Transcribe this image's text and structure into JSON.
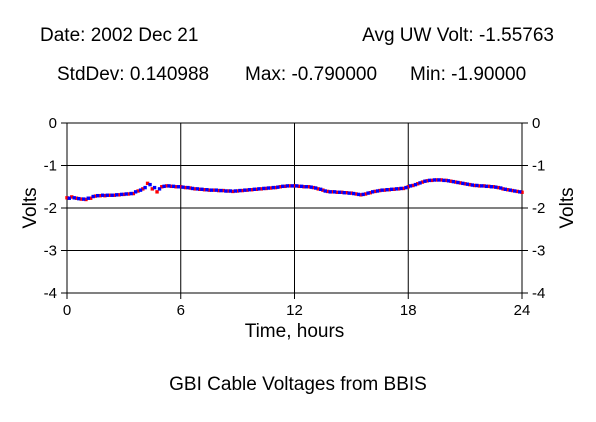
{
  "header": {
    "date": "Date: 2002 Dec 21",
    "avg": "Avg UW Volt: -1.55763",
    "stddev": "StdDev: 0.140988",
    "max": "Max: -0.790000",
    "min": "Min: -1.90000"
  },
  "caption": "GBI Cable Voltages from BBIS",
  "colors": {
    "series_a": "#ff0000",
    "series_b": "#0000ff",
    "grid": "#000000"
  },
  "chart_data": {
    "type": "scatter",
    "xlabel": "Time, hours",
    "ylabel": "Volts",
    "ylabel_right": "Volts",
    "xlim": [
      0,
      24
    ],
    "ylim": [
      -4,
      0
    ],
    "x_ticks": [
      0,
      6,
      12,
      18,
      24
    ],
    "x_tick_labels": [
      "0",
      "6",
      "12",
      "18",
      "24"
    ],
    "y_ticks": [
      0,
      -1,
      -2,
      -3,
      -4
    ],
    "y_tick_labels": [
      "0",
      "-1",
      "-2",
      "-3",
      "-4"
    ],
    "grid": true,
    "series": [
      {
        "color": "#ff0000",
        "points": [
          [
            0.0,
            -1.76
          ],
          [
            0.25,
            -1.74
          ],
          [
            0.5,
            -1.77
          ],
          [
            0.75,
            -1.79
          ],
          [
            1.0,
            -1.8
          ],
          [
            1.25,
            -1.77
          ],
          [
            1.5,
            -1.72
          ],
          [
            1.75,
            -1.71
          ],
          [
            2.0,
            -1.71
          ],
          [
            2.25,
            -1.7
          ],
          [
            2.5,
            -1.7
          ],
          [
            2.75,
            -1.69
          ],
          [
            3.0,
            -1.68
          ],
          [
            3.25,
            -1.67
          ],
          [
            3.5,
            -1.66
          ],
          [
            3.75,
            -1.6
          ],
          [
            4.0,
            -1.55
          ],
          [
            4.25,
            -1.42
          ],
          [
            4.5,
            -1.55
          ],
          [
            4.75,
            -1.62
          ],
          [
            5.0,
            -1.5
          ],
          [
            5.25,
            -1.48
          ],
          [
            5.5,
            -1.49
          ],
          [
            5.75,
            -1.5
          ],
          [
            6.0,
            -1.5
          ],
          [
            6.25,
            -1.52
          ],
          [
            6.5,
            -1.53
          ],
          [
            6.75,
            -1.55
          ],
          [
            7.0,
            -1.56
          ],
          [
            7.25,
            -1.57
          ],
          [
            7.5,
            -1.58
          ],
          [
            7.75,
            -1.58
          ],
          [
            8.0,
            -1.59
          ],
          [
            8.25,
            -1.59
          ],
          [
            8.5,
            -1.6
          ],
          [
            8.75,
            -1.61
          ],
          [
            9.0,
            -1.6
          ],
          [
            9.25,
            -1.59
          ],
          [
            9.5,
            -1.58
          ],
          [
            9.75,
            -1.57
          ],
          [
            10.0,
            -1.56
          ],
          [
            10.25,
            -1.55
          ],
          [
            10.5,
            -1.54
          ],
          [
            10.75,
            -1.53
          ],
          [
            11.0,
            -1.52
          ],
          [
            11.25,
            -1.5
          ],
          [
            11.5,
            -1.49
          ],
          [
            11.75,
            -1.48
          ],
          [
            12.0,
            -1.48
          ],
          [
            12.25,
            -1.49
          ],
          [
            12.5,
            -1.5
          ],
          [
            12.75,
            -1.5
          ],
          [
            13.0,
            -1.52
          ],
          [
            13.25,
            -1.55
          ],
          [
            13.5,
            -1.58
          ],
          [
            13.75,
            -1.61
          ],
          [
            14.0,
            -1.62
          ],
          [
            14.25,
            -1.63
          ],
          [
            14.5,
            -1.63
          ],
          [
            14.75,
            -1.64
          ],
          [
            15.0,
            -1.65
          ],
          [
            15.25,
            -1.67
          ],
          [
            15.5,
            -1.69
          ],
          [
            15.75,
            -1.67
          ],
          [
            16.0,
            -1.64
          ],
          [
            16.25,
            -1.61
          ],
          [
            16.5,
            -1.59
          ],
          [
            16.75,
            -1.58
          ],
          [
            17.0,
            -1.57
          ],
          [
            17.25,
            -1.56
          ],
          [
            17.5,
            -1.55
          ],
          [
            17.75,
            -1.54
          ],
          [
            18.0,
            -1.5
          ],
          [
            18.25,
            -1.47
          ],
          [
            18.5,
            -1.43
          ],
          [
            18.75,
            -1.39
          ],
          [
            19.0,
            -1.36
          ],
          [
            19.25,
            -1.35
          ],
          [
            19.5,
            -1.34
          ],
          [
            19.75,
            -1.34
          ],
          [
            20.0,
            -1.35
          ],
          [
            20.25,
            -1.37
          ],
          [
            20.5,
            -1.39
          ],
          [
            20.75,
            -1.41
          ],
          [
            21.0,
            -1.43
          ],
          [
            21.25,
            -1.45
          ],
          [
            21.5,
            -1.47
          ],
          [
            21.75,
            -1.48
          ],
          [
            22.0,
            -1.48
          ],
          [
            22.25,
            -1.49
          ],
          [
            22.5,
            -1.5
          ],
          [
            22.75,
            -1.52
          ],
          [
            23.0,
            -1.55
          ],
          [
            23.25,
            -1.57
          ],
          [
            23.5,
            -1.59
          ],
          [
            23.75,
            -1.61
          ],
          [
            24.0,
            -1.63
          ]
        ]
      },
      {
        "color": "#0000ff",
        "points": [
          [
            0.12,
            -1.77
          ],
          [
            0.38,
            -1.76
          ],
          [
            0.62,
            -1.78
          ],
          [
            0.88,
            -1.79
          ],
          [
            1.12,
            -1.77
          ],
          [
            1.38,
            -1.73
          ],
          [
            1.62,
            -1.71
          ],
          [
            1.88,
            -1.7
          ],
          [
            2.12,
            -1.7
          ],
          [
            2.38,
            -1.7
          ],
          [
            2.62,
            -1.69
          ],
          [
            2.88,
            -1.68
          ],
          [
            3.12,
            -1.67
          ],
          [
            3.38,
            -1.66
          ],
          [
            3.62,
            -1.62
          ],
          [
            3.88,
            -1.58
          ],
          [
            4.12,
            -1.52
          ],
          [
            4.38,
            -1.45
          ],
          [
            4.62,
            -1.52
          ],
          [
            4.88,
            -1.55
          ],
          [
            5.12,
            -1.49
          ],
          [
            5.38,
            -1.48
          ],
          [
            5.62,
            -1.49
          ],
          [
            5.88,
            -1.5
          ],
          [
            6.12,
            -1.51
          ],
          [
            6.38,
            -1.52
          ],
          [
            6.62,
            -1.54
          ],
          [
            6.88,
            -1.55
          ],
          [
            7.12,
            -1.56
          ],
          [
            7.38,
            -1.57
          ],
          [
            7.62,
            -1.58
          ],
          [
            7.88,
            -1.58
          ],
          [
            8.12,
            -1.59
          ],
          [
            8.38,
            -1.6
          ],
          [
            8.62,
            -1.6
          ],
          [
            8.88,
            -1.6
          ],
          [
            9.12,
            -1.59
          ],
          [
            9.38,
            -1.58
          ],
          [
            9.62,
            -1.57
          ],
          [
            9.88,
            -1.56
          ],
          [
            10.12,
            -1.55
          ],
          [
            10.38,
            -1.54
          ],
          [
            10.62,
            -1.53
          ],
          [
            10.88,
            -1.52
          ],
          [
            11.12,
            -1.51
          ],
          [
            11.38,
            -1.49
          ],
          [
            11.62,
            -1.48
          ],
          [
            11.88,
            -1.48
          ],
          [
            12.12,
            -1.48
          ],
          [
            12.38,
            -1.49
          ],
          [
            12.62,
            -1.5
          ],
          [
            12.88,
            -1.51
          ],
          [
            13.12,
            -1.53
          ],
          [
            13.38,
            -1.56
          ],
          [
            13.62,
            -1.6
          ],
          [
            13.88,
            -1.62
          ],
          [
            14.12,
            -1.62
          ],
          [
            14.38,
            -1.63
          ],
          [
            14.62,
            -1.64
          ],
          [
            14.88,
            -1.65
          ],
          [
            15.12,
            -1.66
          ],
          [
            15.38,
            -1.68
          ],
          [
            15.62,
            -1.68
          ],
          [
            15.88,
            -1.65
          ],
          [
            16.12,
            -1.62
          ],
          [
            16.38,
            -1.6
          ],
          [
            16.62,
            -1.58
          ],
          [
            16.88,
            -1.57
          ],
          [
            17.12,
            -1.56
          ],
          [
            17.38,
            -1.55
          ],
          [
            17.62,
            -1.54
          ],
          [
            17.88,
            -1.52
          ],
          [
            18.12,
            -1.48
          ],
          [
            18.38,
            -1.45
          ],
          [
            18.62,
            -1.41
          ],
          [
            18.88,
            -1.37
          ],
          [
            19.12,
            -1.35
          ],
          [
            19.38,
            -1.34
          ],
          [
            19.62,
            -1.34
          ],
          [
            19.88,
            -1.35
          ],
          [
            20.12,
            -1.36
          ],
          [
            20.38,
            -1.38
          ],
          [
            20.62,
            -1.4
          ],
          [
            20.88,
            -1.42
          ],
          [
            21.12,
            -1.44
          ],
          [
            21.38,
            -1.46
          ],
          [
            21.62,
            -1.47
          ],
          [
            21.88,
            -1.48
          ],
          [
            22.12,
            -1.49
          ],
          [
            22.38,
            -1.5
          ],
          [
            22.62,
            -1.51
          ],
          [
            22.88,
            -1.53
          ],
          [
            23.12,
            -1.56
          ],
          [
            23.38,
            -1.58
          ],
          [
            23.62,
            -1.6
          ],
          [
            23.88,
            -1.62
          ]
        ]
      }
    ]
  }
}
